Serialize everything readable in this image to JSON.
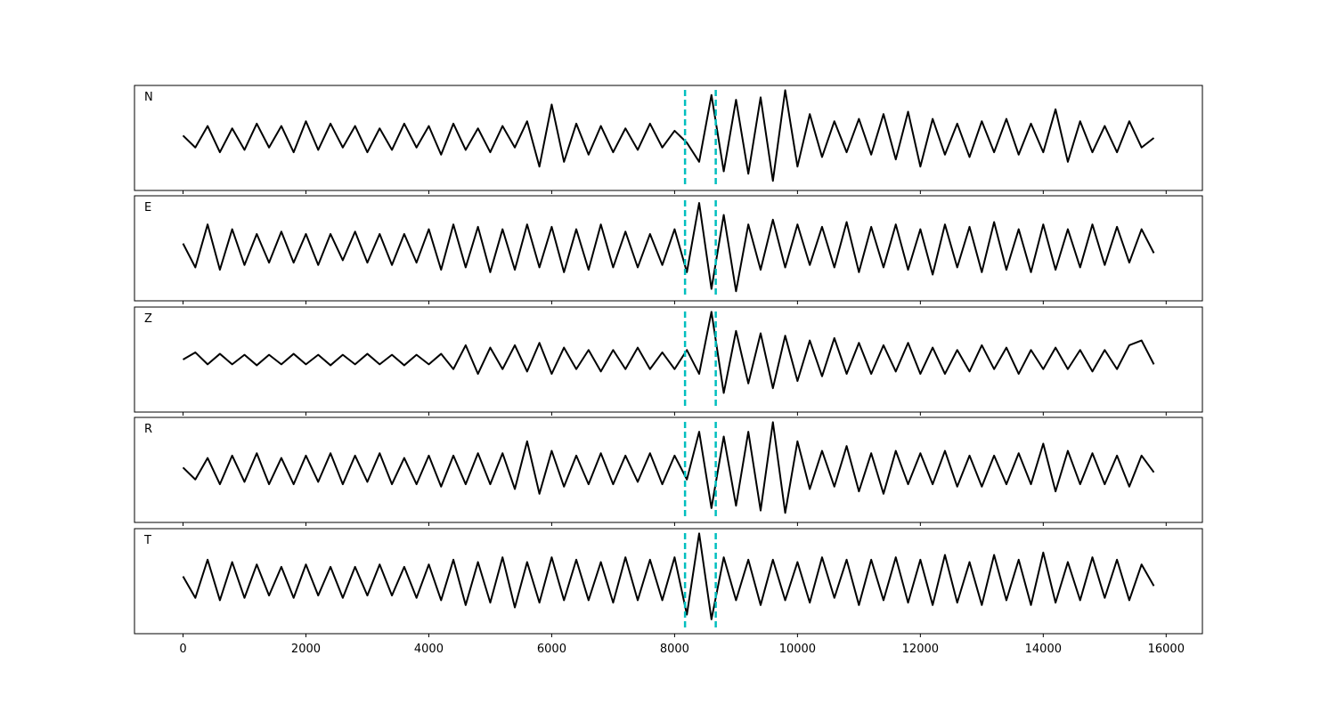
{
  "chart_data": [
    {
      "type": "line",
      "label": "N",
      "color": "#000000",
      "vlines": [
        8170,
        8670
      ],
      "vline_color": "#00bfbf",
      "xlim": [
        -790,
        16590
      ],
      "ylim": [
        -1.1,
        1.1
      ],
      "xticks": [
        0,
        2000,
        4000,
        6000,
        8000,
        10000,
        12000,
        14000,
        16000
      ],
      "x": [
        0,
        200,
        400,
        600,
        800,
        1000,
        1200,
        1400,
        1600,
        1800,
        2000,
        2200,
        2400,
        2600,
        2800,
        3000,
        3200,
        3400,
        3600,
        3800,
        4000,
        4200,
        4400,
        4600,
        4800,
        5000,
        5200,
        5400,
        5600,
        5800,
        6000,
        6200,
        6400,
        6600,
        6800,
        7000,
        7200,
        7400,
        7600,
        7800,
        8000,
        8200,
        8400,
        8600,
        8800,
        9000,
        9200,
        9400,
        9600,
        9800,
        10000,
        10200,
        10400,
        10600,
        10800,
        11000,
        11200,
        11400,
        11600,
        11800,
        12000,
        12200,
        12400,
        12600,
        12800,
        13000,
        13200,
        13400,
        13600,
        13800,
        14000,
        14200,
        14400,
        14600,
        14800,
        15000,
        15200,
        15400,
        15600,
        15800
      ],
      "values": [
        0.05,
        -0.2,
        0.25,
        -0.3,
        0.2,
        -0.25,
        0.3,
        -0.2,
        0.25,
        -0.3,
        0.35,
        -0.25,
        0.3,
        -0.2,
        0.25,
        -0.3,
        0.2,
        -0.25,
        0.3,
        -0.2,
        0.25,
        -0.35,
        0.3,
        -0.25,
        0.2,
        -0.3,
        0.25,
        -0.2,
        0.35,
        -0.6,
        0.7,
        -0.5,
        0.3,
        -0.35,
        0.25,
        -0.3,
        0.2,
        -0.25,
        0.3,
        -0.2,
        0.15,
        -0.1,
        -0.5,
        0.9,
        -0.7,
        0.8,
        -0.75,
        0.85,
        -0.9,
        1.0,
        -0.6,
        0.5,
        -0.4,
        0.35,
        -0.3,
        0.4,
        -0.35,
        0.5,
        -0.45,
        0.55,
        -0.6,
        0.4,
        -0.35,
        0.3,
        -0.4,
        0.35,
        -0.3,
        0.4,
        -0.35,
        0.3,
        -0.3,
        0.6,
        -0.5,
        0.35,
        -0.3,
        0.25,
        -0.3,
        0.35,
        -0.2,
        0.0
      ]
    },
    {
      "type": "line",
      "label": "E",
      "color": "#000000",
      "vlines": [
        8170,
        8670
      ],
      "vline_color": "#00bfbf",
      "xlim": [
        -790,
        16590
      ],
      "ylim": [
        -1.1,
        1.1
      ],
      "xticks": [
        0,
        2000,
        4000,
        6000,
        8000,
        10000,
        12000,
        14000,
        16000
      ],
      "x": [
        0,
        200,
        400,
        600,
        800,
        1000,
        1200,
        1400,
        1600,
        1800,
        2000,
        2200,
        2400,
        2600,
        2800,
        3000,
        3200,
        3400,
        3600,
        3800,
        4000,
        4200,
        4400,
        4600,
        4800,
        5000,
        5200,
        5400,
        5600,
        5800,
        6000,
        6200,
        6400,
        6600,
        6800,
        7000,
        7200,
        7400,
        7600,
        7800,
        8000,
        8200,
        8400,
        8600,
        8800,
        9000,
        9200,
        9400,
        9600,
        9800,
        10000,
        10200,
        10400,
        10600,
        10800,
        11000,
        11200,
        11400,
        11600,
        11800,
        12000,
        12200,
        12400,
        12600,
        12800,
        13000,
        13200,
        13400,
        13600,
        13800,
        14000,
        14200,
        14400,
        14600,
        14800,
        15000,
        15200,
        15400,
        15600,
        15800
      ],
      "values": [
        0.1,
        -0.4,
        0.5,
        -0.45,
        0.4,
        -0.35,
        0.3,
        -0.3,
        0.35,
        -0.3,
        0.3,
        -0.35,
        0.3,
        -0.25,
        0.35,
        -0.3,
        0.3,
        -0.35,
        0.3,
        -0.3,
        0.4,
        -0.45,
        0.5,
        -0.4,
        0.45,
        -0.5,
        0.4,
        -0.45,
        0.5,
        -0.4,
        0.45,
        -0.5,
        0.4,
        -0.45,
        0.5,
        -0.4,
        0.35,
        -0.4,
        0.3,
        -0.35,
        0.4,
        -0.5,
        0.95,
        -0.85,
        0.7,
        -0.9,
        0.5,
        -0.45,
        0.6,
        -0.4,
        0.5,
        -0.35,
        0.45,
        -0.4,
        0.55,
        -0.5,
        0.45,
        -0.4,
        0.5,
        -0.45,
        0.4,
        -0.55,
        0.5,
        -0.4,
        0.45,
        -0.5,
        0.55,
        -0.45,
        0.4,
        -0.5,
        0.5,
        -0.45,
        0.4,
        -0.4,
        0.5,
        -0.35,
        0.45,
        -0.3,
        0.4,
        -0.1
      ]
    },
    {
      "type": "line",
      "label": "Z",
      "color": "#000000",
      "vlines": [
        8170,
        8670
      ],
      "vline_color": "#00bfbf",
      "xlim": [
        -790,
        16590
      ],
      "ylim": [
        -1.1,
        1.1
      ],
      "xticks": [
        0,
        2000,
        4000,
        6000,
        8000,
        10000,
        12000,
        14000,
        16000
      ],
      "x": [
        0,
        200,
        400,
        600,
        800,
        1000,
        1200,
        1400,
        1600,
        1800,
        2000,
        2200,
        2400,
        2600,
        2800,
        3000,
        3200,
        3400,
        3600,
        3800,
        4000,
        4200,
        4400,
        4600,
        4800,
        5000,
        5200,
        5400,
        5600,
        5800,
        6000,
        6200,
        6400,
        6600,
        6800,
        7000,
        7200,
        7400,
        7600,
        7800,
        8000,
        8200,
        8400,
        8600,
        8800,
        9000,
        9200,
        9400,
        9600,
        9800,
        10000,
        10200,
        10400,
        10600,
        10800,
        11000,
        11200,
        11400,
        11600,
        11800,
        12000,
        12200,
        12400,
        12600,
        12800,
        13000,
        13200,
        13400,
        13600,
        13800,
        14000,
        14200,
        14400,
        14600,
        14800,
        15000,
        15200,
        15400,
        15600,
        15800
      ],
      "values": [
        0.0,
        0.15,
        -0.1,
        0.12,
        -0.1,
        0.1,
        -0.12,
        0.1,
        -0.1,
        0.12,
        -0.1,
        0.1,
        -0.12,
        0.1,
        -0.1,
        0.12,
        -0.1,
        0.1,
        -0.12,
        0.1,
        -0.1,
        0.12,
        -0.2,
        0.3,
        -0.3,
        0.25,
        -0.2,
        0.3,
        -0.25,
        0.35,
        -0.3,
        0.25,
        -0.2,
        0.2,
        -0.25,
        0.2,
        -0.2,
        0.25,
        -0.2,
        0.15,
        -0.2,
        0.2,
        -0.3,
        1.0,
        -0.7,
        0.6,
        -0.5,
        0.55,
        -0.6,
        0.5,
        -0.45,
        0.4,
        -0.35,
        0.45,
        -0.3,
        0.35,
        -0.3,
        0.3,
        -0.25,
        0.35,
        -0.3,
        0.25,
        -0.3,
        0.2,
        -0.25,
        0.3,
        -0.2,
        0.25,
        -0.3,
        0.2,
        -0.2,
        0.25,
        -0.2,
        0.2,
        -0.25,
        0.2,
        -0.2,
        0.3,
        0.4,
        -0.1
      ]
    },
    {
      "type": "line",
      "label": "R",
      "color": "#000000",
      "vlines": [
        8170,
        8670
      ],
      "vline_color": "#00bfbf",
      "xlim": [
        -790,
        16590
      ],
      "ylim": [
        -1.1,
        1.1
      ],
      "xticks": [
        0,
        2000,
        4000,
        6000,
        8000,
        10000,
        12000,
        14000,
        16000
      ],
      "x": [
        0,
        200,
        400,
        600,
        800,
        1000,
        1200,
        1400,
        1600,
        1800,
        2000,
        2200,
        2400,
        2600,
        2800,
        3000,
        3200,
        3400,
        3600,
        3800,
        4000,
        4200,
        4400,
        4600,
        4800,
        5000,
        5200,
        5400,
        5600,
        5800,
        6000,
        6200,
        6400,
        6600,
        6800,
        7000,
        7200,
        7400,
        7600,
        7800,
        8000,
        8200,
        8400,
        8600,
        8800,
        9000,
        9200,
        9400,
        9600,
        9800,
        10000,
        10200,
        10400,
        10600,
        10800,
        11000,
        11200,
        11400,
        11600,
        11800,
        12000,
        12200,
        12400,
        12600,
        12800,
        13000,
        13200,
        13400,
        13600,
        13800,
        14000,
        14200,
        14400,
        14600,
        14800,
        15000,
        15200,
        15400,
        15600,
        15800
      ],
      "values": [
        0.05,
        -0.2,
        0.25,
        -0.3,
        0.3,
        -0.25,
        0.35,
        -0.3,
        0.25,
        -0.3,
        0.3,
        -0.25,
        0.35,
        -0.3,
        0.3,
        -0.25,
        0.35,
        -0.3,
        0.25,
        -0.3,
        0.3,
        -0.35,
        0.3,
        -0.3,
        0.35,
        -0.3,
        0.35,
        -0.4,
        0.6,
        -0.5,
        0.4,
        -0.35,
        0.3,
        -0.3,
        0.35,
        -0.3,
        0.3,
        -0.25,
        0.35,
        -0.3,
        0.3,
        -0.2,
        0.8,
        -0.8,
        0.7,
        -0.75,
        0.8,
        -0.85,
        1.0,
        -0.9,
        0.6,
        -0.4,
        0.4,
        -0.35,
        0.5,
        -0.45,
        0.35,
        -0.5,
        0.4,
        -0.3,
        0.35,
        -0.3,
        0.4,
        -0.35,
        0.3,
        -0.35,
        0.3,
        -0.3,
        0.35,
        -0.3,
        0.55,
        -0.45,
        0.4,
        -0.3,
        0.35,
        -0.3,
        0.3,
        -0.35,
        0.3,
        -0.05
      ]
    },
    {
      "type": "line",
      "label": "T",
      "color": "#000000",
      "vlines": [
        8170,
        8670
      ],
      "vline_color": "#00bfbf",
      "xlim": [
        -790,
        16590
      ],
      "ylim": [
        -1.1,
        1.1
      ],
      "xticks": [
        0,
        2000,
        4000,
        6000,
        8000,
        10000,
        12000,
        14000,
        16000
      ],
      "x": [
        0,
        200,
        400,
        600,
        800,
        1000,
        1200,
        1400,
        1600,
        1800,
        2000,
        2200,
        2400,
        2600,
        2800,
        3000,
        3200,
        3400,
        3600,
        3800,
        4000,
        4200,
        4400,
        4600,
        4800,
        5000,
        5200,
        5400,
        5600,
        5800,
        6000,
        6200,
        6400,
        6600,
        6800,
        7000,
        7200,
        7400,
        7600,
        7800,
        8000,
        8200,
        8400,
        8600,
        8800,
        9000,
        9200,
        9400,
        9600,
        9800,
        10000,
        10200,
        10400,
        10600,
        10800,
        11000,
        11200,
        11400,
        11600,
        11800,
        12000,
        12200,
        12400,
        12600,
        12800,
        13000,
        13200,
        13400,
        13600,
        13800,
        14000,
        14200,
        14400,
        14600,
        14800,
        15000,
        15200,
        15400,
        15600,
        15800
      ],
      "values": [
        0.1,
        -0.35,
        0.45,
        -0.4,
        0.4,
        -0.35,
        0.35,
        -0.3,
        0.3,
        -0.35,
        0.35,
        -0.3,
        0.3,
        -0.35,
        0.3,
        -0.3,
        0.35,
        -0.3,
        0.3,
        -0.35,
        0.35,
        -0.4,
        0.45,
        -0.5,
        0.4,
        -0.45,
        0.5,
        -0.55,
        0.4,
        -0.45,
        0.5,
        -0.4,
        0.45,
        -0.4,
        0.4,
        -0.45,
        0.5,
        -0.4,
        0.45,
        -0.4,
        0.5,
        -0.7,
        1.0,
        -0.8,
        0.5,
        -0.4,
        0.45,
        -0.5,
        0.45,
        -0.4,
        0.4,
        -0.45,
        0.5,
        -0.35,
        0.45,
        -0.5,
        0.45,
        -0.4,
        0.5,
        -0.45,
        0.45,
        -0.5,
        0.55,
        -0.45,
        0.4,
        -0.5,
        0.55,
        -0.4,
        0.45,
        -0.5,
        0.6,
        -0.45,
        0.4,
        -0.4,
        0.5,
        -0.35,
        0.45,
        -0.4,
        0.35,
        -0.1
      ]
    }
  ]
}
